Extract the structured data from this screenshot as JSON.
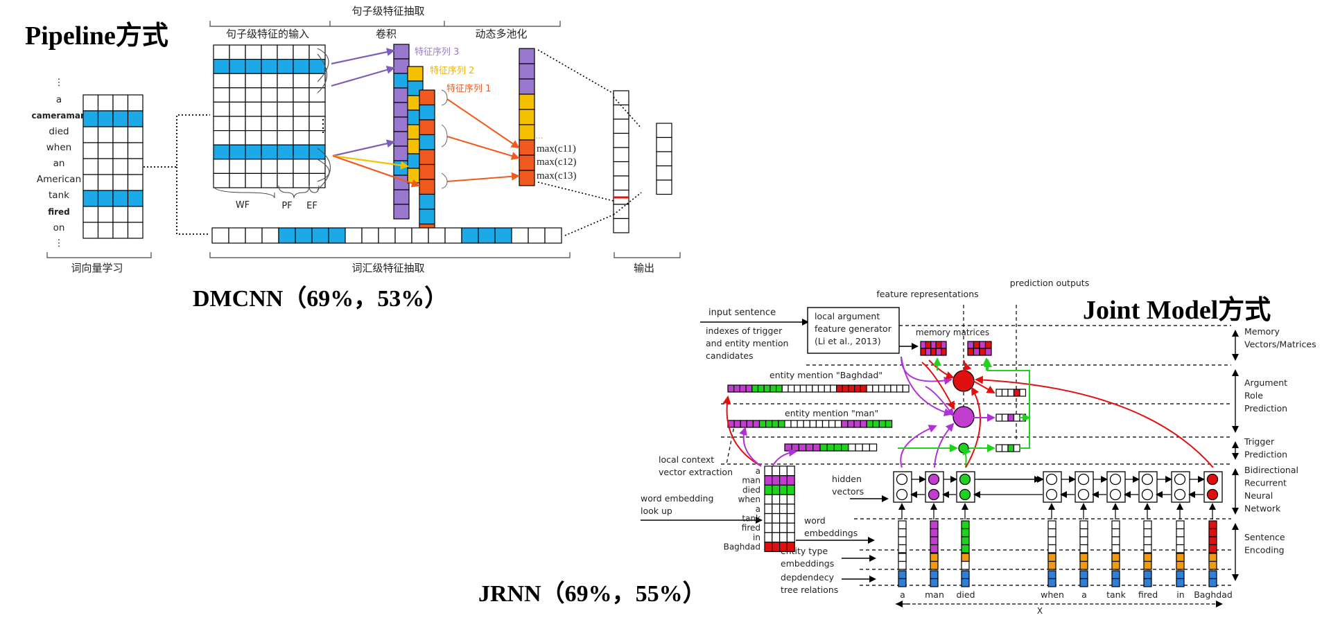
{
  "pipeline_title": "Pipeline方式",
  "joint_title": "Joint Model方式",
  "dmcnn_caption": "DMCNN（69%，53%）",
  "jrnn_caption": "JRNN（69%，55%）",
  "colors": {
    "blue": "#1ca9e8",
    "purple": "#9b78d0",
    "yellow": "#f5c000",
    "orange": "#f05a1e",
    "magenta": "#c23cd0",
    "green": "#1ed21e",
    "red": "#e01010",
    "etype_blue": "#2f7fd6",
    "etype_orange": "#f29a14"
  },
  "dmcnn": {
    "sentence_feature_header": "句子级特征抽取",
    "input_header": "句子级特征的输入",
    "conv_header": "卷积",
    "pool_header": "动态多池化",
    "words": [
      "⋮",
      "a",
      "cameraman",
      "died",
      "when",
      "an",
      "American",
      "tank",
      "fired",
      "on",
      "⋮"
    ],
    "feature_map_labels": [
      "特征序列 3",
      "特征序列 2",
      "特征序列 1"
    ],
    "max_labels": [
      "max(c11)",
      "max(c12)",
      "max(c13)"
    ],
    "ellipsis": "...",
    "wf": "WF",
    "pf": "PF",
    "ef": "EF",
    "word_vector_label": "词向量学习",
    "lexical_label": "词汇级特征抽取",
    "output_label": "输出"
  },
  "jrnn": {
    "feature_representations": "feature representations",
    "prediction_outputs": "prediction outputs",
    "input_sentence": "input sentence",
    "trigger_indexes": [
      "indexes of trigger",
      "and entity mention",
      "candidates"
    ],
    "local_arg": [
      "local argument",
      "feature generator",
      "(Li et al., 2013)"
    ],
    "memory_matrices": "memory matrices",
    "entity_baghdad": "entity mention \"Baghdad\"",
    "entity_man": "entity mention \"man\"",
    "local_context": [
      "local context",
      "vector extraction"
    ],
    "word_embedding_lookup": [
      "word embedding",
      "look up"
    ],
    "hidden_vectors": [
      "hidden",
      "vectors"
    ],
    "word_embeddings": [
      "word",
      "embeddings"
    ],
    "entity_type_embeddings": [
      "entity type",
      "embeddings"
    ],
    "dependency": [
      "depdendecy",
      "tree relations"
    ],
    "embed_words": [
      "a",
      "man",
      "died",
      "when",
      "a",
      "tank",
      "fired",
      "in",
      "Baghdad"
    ],
    "bottom_words": [
      "a",
      "man",
      "died",
      "when",
      "a",
      "tank",
      "fired",
      "in",
      "Baghdad"
    ],
    "x_label": "X",
    "right_labels": {
      "memory": [
        "Memory",
        "Vectors/Matrices"
      ],
      "argument": [
        "Argument",
        "Role",
        "Prediction"
      ],
      "trigger": [
        "Trigger",
        "Prediction"
      ],
      "birnn": [
        "Bidirectional",
        "Recurrent",
        "Neural",
        "Network"
      ],
      "sentence": [
        "Sentence",
        "Encoding"
      ]
    }
  }
}
